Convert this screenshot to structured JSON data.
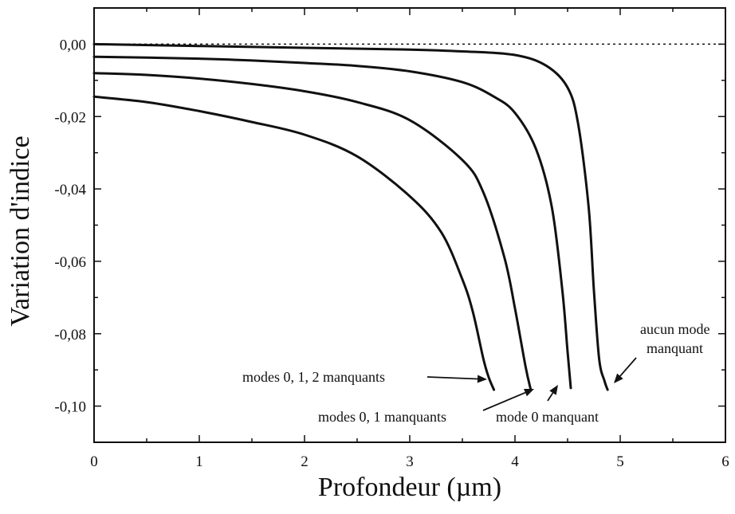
{
  "chart_data": {
    "type": "line",
    "xlabel": "Profondeur  (µm)",
    "ylabel": "Variation d'indice",
    "xlim": [
      0,
      6
    ],
    "ylim": [
      -0.11,
      0.01
    ],
    "xticks": [
      0,
      1,
      2,
      3,
      4,
      5,
      6
    ],
    "xtick_labels": [
      "0",
      "1",
      "2",
      "3",
      "4",
      "5",
      "6"
    ],
    "yticks": [
      0.0,
      -0.02,
      -0.04,
      -0.06,
      -0.08,
      -0.1
    ],
    "ytick_labels": [
      "0,00",
      "-0,02",
      "-0,04",
      "-0,06",
      "-0,08",
      "-0,10"
    ],
    "grid": false,
    "reference_line": {
      "y": 0.0,
      "style": "dotted"
    },
    "series": [
      {
        "x": [
          0,
          0.5,
          1.0,
          1.5,
          2.0,
          2.5,
          3.0,
          3.3,
          3.5,
          3.6,
          3.7,
          3.75,
          3.8
        ],
        "y": [
          -0.0145,
          -0.016,
          -0.0185,
          -0.0215,
          -0.025,
          -0.031,
          -0.042,
          -0.052,
          -0.065,
          -0.074,
          -0.087,
          -0.092,
          -0.0955
        ]
      },
      {
        "x": [
          0,
          0.5,
          1.0,
          1.5,
          2.0,
          2.5,
          3.0,
          3.5,
          3.7,
          3.9,
          4.0,
          4.1,
          4.15
        ],
        "y": [
          -0.008,
          -0.0085,
          -0.0095,
          -0.011,
          -0.013,
          -0.016,
          -0.021,
          -0.032,
          -0.041,
          -0.059,
          -0.073,
          -0.089,
          -0.0955
        ]
      },
      {
        "x": [
          0,
          0.5,
          1.0,
          1.5,
          2.0,
          2.5,
          3.0,
          3.5,
          3.8,
          4.0,
          4.2,
          4.35,
          4.45,
          4.5,
          4.53
        ],
        "y": [
          -0.0035,
          -0.0037,
          -0.004,
          -0.0045,
          -0.0052,
          -0.006,
          -0.0075,
          -0.0105,
          -0.0145,
          -0.019,
          -0.029,
          -0.045,
          -0.068,
          -0.085,
          -0.095
        ]
      },
      {
        "x": [
          0,
          1.0,
          2.0,
          3.0,
          3.5,
          4.0,
          4.3,
          4.5,
          4.6,
          4.7,
          4.75,
          4.8,
          4.85,
          4.88
        ],
        "y": [
          0.0,
          -0.0005,
          -0.001,
          -0.0015,
          -0.002,
          -0.003,
          -0.006,
          -0.012,
          -0.022,
          -0.045,
          -0.068,
          -0.087,
          -0.093,
          -0.0955
        ]
      }
    ],
    "annotations": [
      {
        "text": "modes 0, 1, 2 manquants"
      },
      {
        "text": "modes 0, 1 manquants"
      },
      {
        "text": "mode 0 manquant"
      },
      {
        "text": "aucun mode"
      },
      {
        "text": "manquant"
      }
    ]
  }
}
